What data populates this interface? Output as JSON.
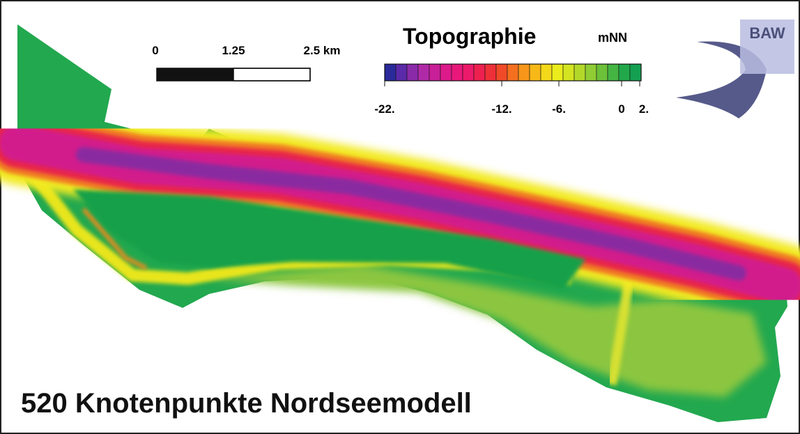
{
  "scale_bar": {
    "labels": [
      "0",
      "1.25",
      "2.5 km"
    ]
  },
  "legend": {
    "title": "Topographie",
    "unit": "mNN",
    "ticks": [
      "-22.",
      "-12.",
      "-6.",
      "0",
      "2."
    ]
  },
  "logo": "BAW",
  "caption": "520 Knotenpunkte Nordseemodell"
}
